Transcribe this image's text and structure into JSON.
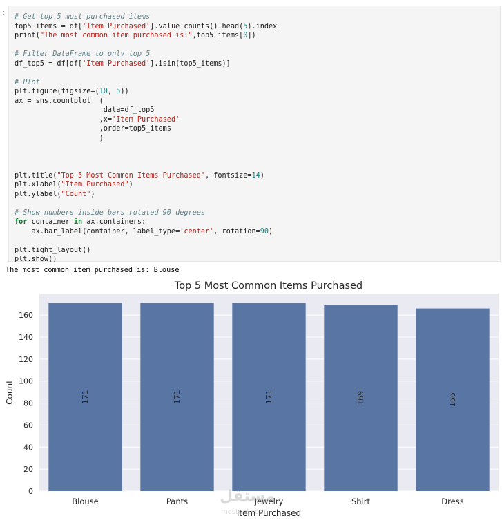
{
  "notebook": {
    "prompt": ":",
    "code_lines": [
      [
        {
          "c": "cm",
          "t": "# Get top 5 most purchased items"
        }
      ],
      [
        {
          "t": "top5_items = df["
        },
        {
          "c": "st",
          "t": "'Item Purchased'"
        },
        {
          "t": "].value_counts().head("
        },
        {
          "c": "nu",
          "t": "5"
        },
        {
          "t": ").index"
        }
      ],
      [
        {
          "t": "print("
        },
        {
          "c": "st",
          "t": "\"The most common item purchased is:\""
        },
        {
          "t": ",top5_items["
        },
        {
          "c": "nu",
          "t": "0"
        },
        {
          "t": "])"
        }
      ],
      [
        {
          "t": ""
        }
      ],
      [
        {
          "c": "cm",
          "t": "# Filter DataFrame to only top 5"
        }
      ],
      [
        {
          "t": "df_top5 = df[df["
        },
        {
          "c": "st",
          "t": "'Item Purchased'"
        },
        {
          "t": "].isin(top5_items)]"
        }
      ],
      [
        {
          "t": ""
        }
      ],
      [
        {
          "c": "cm",
          "t": "# Plot"
        }
      ],
      [
        {
          "t": "plt.figure(figsize=("
        },
        {
          "c": "nu",
          "t": "10"
        },
        {
          "t": ", "
        },
        {
          "c": "nu",
          "t": "5"
        },
        {
          "t": "))"
        }
      ],
      [
        {
          "t": "ax = sns.countplot  ("
        }
      ],
      [
        {
          "t": "                     data=df_top5"
        }
      ],
      [
        {
          "t": "                    ,x="
        },
        {
          "c": "st",
          "t": "'Item Purchased'"
        }
      ],
      [
        {
          "t": "                    ,order=top5_items"
        }
      ],
      [
        {
          "t": "                    )"
        }
      ],
      [
        {
          "t": ""
        }
      ],
      [
        {
          "t": ""
        }
      ],
      [
        {
          "t": ""
        }
      ],
      [
        {
          "t": "plt.title("
        },
        {
          "c": "st",
          "t": "\"Top 5 Most Common Items Purchased\""
        },
        {
          "t": ", fontsize="
        },
        {
          "c": "nu",
          "t": "14"
        },
        {
          "t": ")"
        }
      ],
      [
        {
          "t": "plt.xlabel("
        },
        {
          "c": "st",
          "t": "\"Item Purchased\""
        },
        {
          "t": ")"
        }
      ],
      [
        {
          "t": "plt.ylabel("
        },
        {
          "c": "st",
          "t": "\"Count\""
        },
        {
          "t": ")"
        }
      ],
      [
        {
          "t": ""
        }
      ],
      [
        {
          "c": "cm",
          "t": "# Show numbers inside bars rotated 90 degrees"
        }
      ],
      [
        {
          "c": "kw",
          "t": "for"
        },
        {
          "t": " container "
        },
        {
          "c": "kw",
          "t": "in"
        },
        {
          "t": " ax.containers:"
        }
      ],
      [
        {
          "t": "    ax.bar_label(container, label_type="
        },
        {
          "c": "st",
          "t": "'center'"
        },
        {
          "t": ", rotation="
        },
        {
          "c": "nu",
          "t": "90"
        },
        {
          "t": ")"
        }
      ],
      [
        {
          "t": ""
        }
      ],
      [
        {
          "t": "plt.tight_layout()"
        }
      ],
      [
        {
          "t": "plt.show()"
        }
      ]
    ],
    "output_text": "The most common item purchased is: Blouse",
    "watermark": "مستقل",
    "watermark_sub": "mostaql.com"
  },
  "chart_data": {
    "type": "bar",
    "title": "Top 5 Most Common Items Purchased",
    "xlabel": "Item Purchased",
    "ylabel": "Count",
    "categories": [
      "Blouse",
      "Pants",
      "Jewelry",
      "Shirt",
      "Dress"
    ],
    "values": [
      171,
      171,
      171,
      169,
      166
    ],
    "data_labels": [
      "171",
      "171",
      "171",
      "169",
      "166"
    ],
    "y_ticks": [
      0,
      20,
      40,
      60,
      80,
      100,
      120,
      140,
      160
    ],
    "ylim": [
      0,
      179.55
    ],
    "grid": true,
    "colors": {
      "bar": "#5875a4",
      "axes_background": "#eaeaf2",
      "grid": "#ffffff",
      "text": "#262626"
    }
  }
}
